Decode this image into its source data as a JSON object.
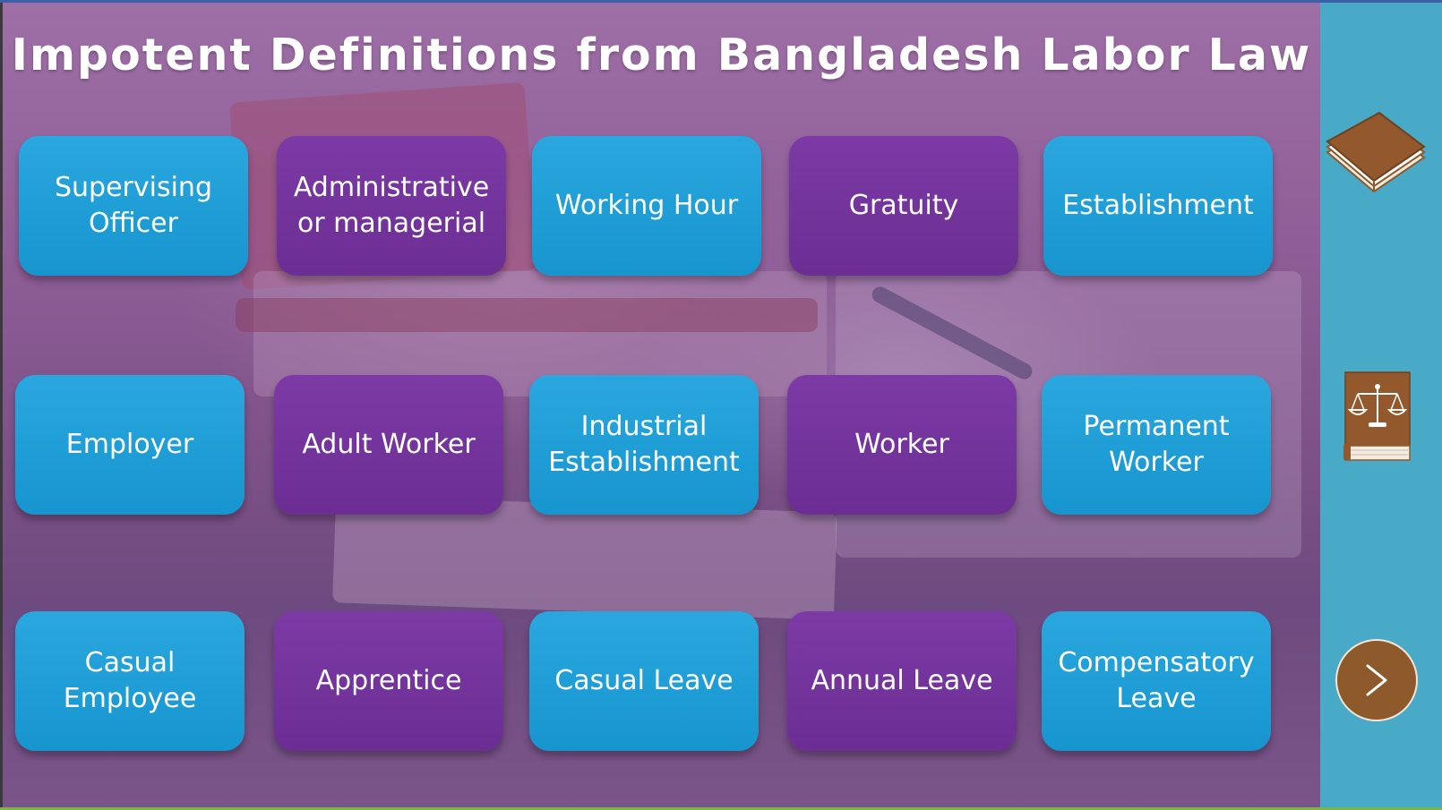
{
  "slide": {
    "title": "Impotent Definitions from Bangladesh Labor Law"
  },
  "tiles": [
    {
      "label": "Supervising Officer",
      "color": "blue"
    },
    {
      "label": "Administrative or managerial",
      "color": "purple"
    },
    {
      "label": "Working Hour",
      "color": "blue"
    },
    {
      "label": "Gratuity",
      "color": "purple"
    },
    {
      "label": "Establishment",
      "color": "blue"
    },
    {
      "label": "Employer",
      "color": "blue"
    },
    {
      "label": "Adult Worker",
      "color": "purple"
    },
    {
      "label": "Industrial Establishment",
      "color": "blue"
    },
    {
      "label": "Worker",
      "color": "purple"
    },
    {
      "label": "Permanent Worker",
      "color": "blue"
    },
    {
      "label": "Casual Employee",
      "color": "blue"
    },
    {
      "label": "Apprentice",
      "color": "purple"
    },
    {
      "label": "Casual Leave",
      "color": "blue"
    },
    {
      "label": "Annual Leave",
      "color": "purple"
    },
    {
      "label": "Compensatory Leave",
      "color": "blue"
    }
  ],
  "sidebar": {
    "icons": [
      "book-icon",
      "law-book-scales-icon",
      "next-arrow-icon"
    ]
  },
  "colors": {
    "tile_blue": "#1e9fd8",
    "tile_purple": "#7533a0",
    "sidebar": "#48aac6",
    "icon_brown": "#8e5a2b"
  }
}
